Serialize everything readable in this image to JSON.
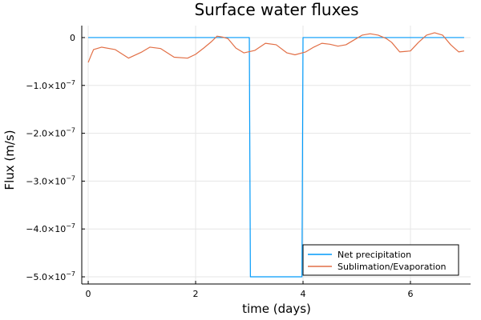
{
  "chart_data": {
    "type": "line",
    "title": "Surface water fluxes",
    "xlabel": "time (days)",
    "ylabel": "Flux (m/s)",
    "xlim": [
      -0.12,
      7.12
    ],
    "ylim": [
      -5.15e-07,
      2.5e-08
    ],
    "x_ticks": [
      {
        "value": 0,
        "label": "0"
      },
      {
        "value": 2,
        "label": "2"
      },
      {
        "value": 4,
        "label": "4"
      },
      {
        "value": 6,
        "label": "6"
      }
    ],
    "y_ticks": [
      {
        "value": 0,
        "label": "0",
        "exp": ""
      },
      {
        "value": -1e-07,
        "label": "−1.0×10",
        "exp": "−7"
      },
      {
        "value": -2e-07,
        "label": "−2.0×10",
        "exp": "−7"
      },
      {
        "value": -3e-07,
        "label": "−3.0×10",
        "exp": "−7"
      },
      {
        "value": -4e-07,
        "label": "−4.0×10",
        "exp": "−7"
      },
      {
        "value": -5e-07,
        "label": "−5.0×10",
        "exp": "−7"
      }
    ],
    "grid": true,
    "legend": "bottom-right",
    "series": [
      {
        "name": "Net precipitation",
        "color": "#009AFA",
        "x": [
          0,
          3.0,
          3.02,
          3.98,
          4.0,
          7.0
        ],
        "y": [
          0,
          0,
          -5e-07,
          -5e-07,
          0,
          0
        ]
      },
      {
        "name": "Sublimation/Evaporation",
        "color": "#E26F46",
        "x": [
          0,
          0.05,
          0.1,
          0.25,
          0.5,
          0.75,
          1.0,
          1.15,
          1.35,
          1.6,
          1.85,
          2.0,
          2.15,
          2.3,
          2.4,
          2.5,
          2.6,
          2.75,
          2.9,
          3.1,
          3.3,
          3.5,
          3.7,
          3.85,
          4.05,
          4.2,
          4.35,
          4.5,
          4.65,
          4.8,
          4.95,
          5.1,
          5.25,
          5.4,
          5.55,
          5.65,
          5.8,
          6.0,
          6.15,
          6.3,
          6.45,
          6.6,
          6.75,
          6.9,
          7.0
        ],
        "y": [
          -5.2e-08,
          -3.8e-08,
          -2.5e-08,
          -2e-08,
          -2.5e-08,
          -4.3e-08,
          -3e-08,
          -2e-08,
          -2.3e-08,
          -4.1e-08,
          -4.3e-08,
          -3.5e-08,
          -2.2e-08,
          -8e-09,
          3e-09,
          1e-09,
          -2e-09,
          -2.2e-08,
          -3.2e-08,
          -2.7e-08,
          -1.2e-08,
          -1.5e-08,
          -3.2e-08,
          -3.6e-08,
          -3e-08,
          -2e-08,
          -1.2e-08,
          -1.4e-08,
          -1.8e-08,
          -1.5e-08,
          -5e-09,
          5e-09,
          8e-09,
          5e-09,
          -2e-09,
          -1e-08,
          -3e-08,
          -2.8e-08,
          -1e-08,
          5e-09,
          1e-08,
          5e-09,
          -1.5e-08,
          -3e-08,
          -2.8e-08
        ]
      }
    ]
  }
}
